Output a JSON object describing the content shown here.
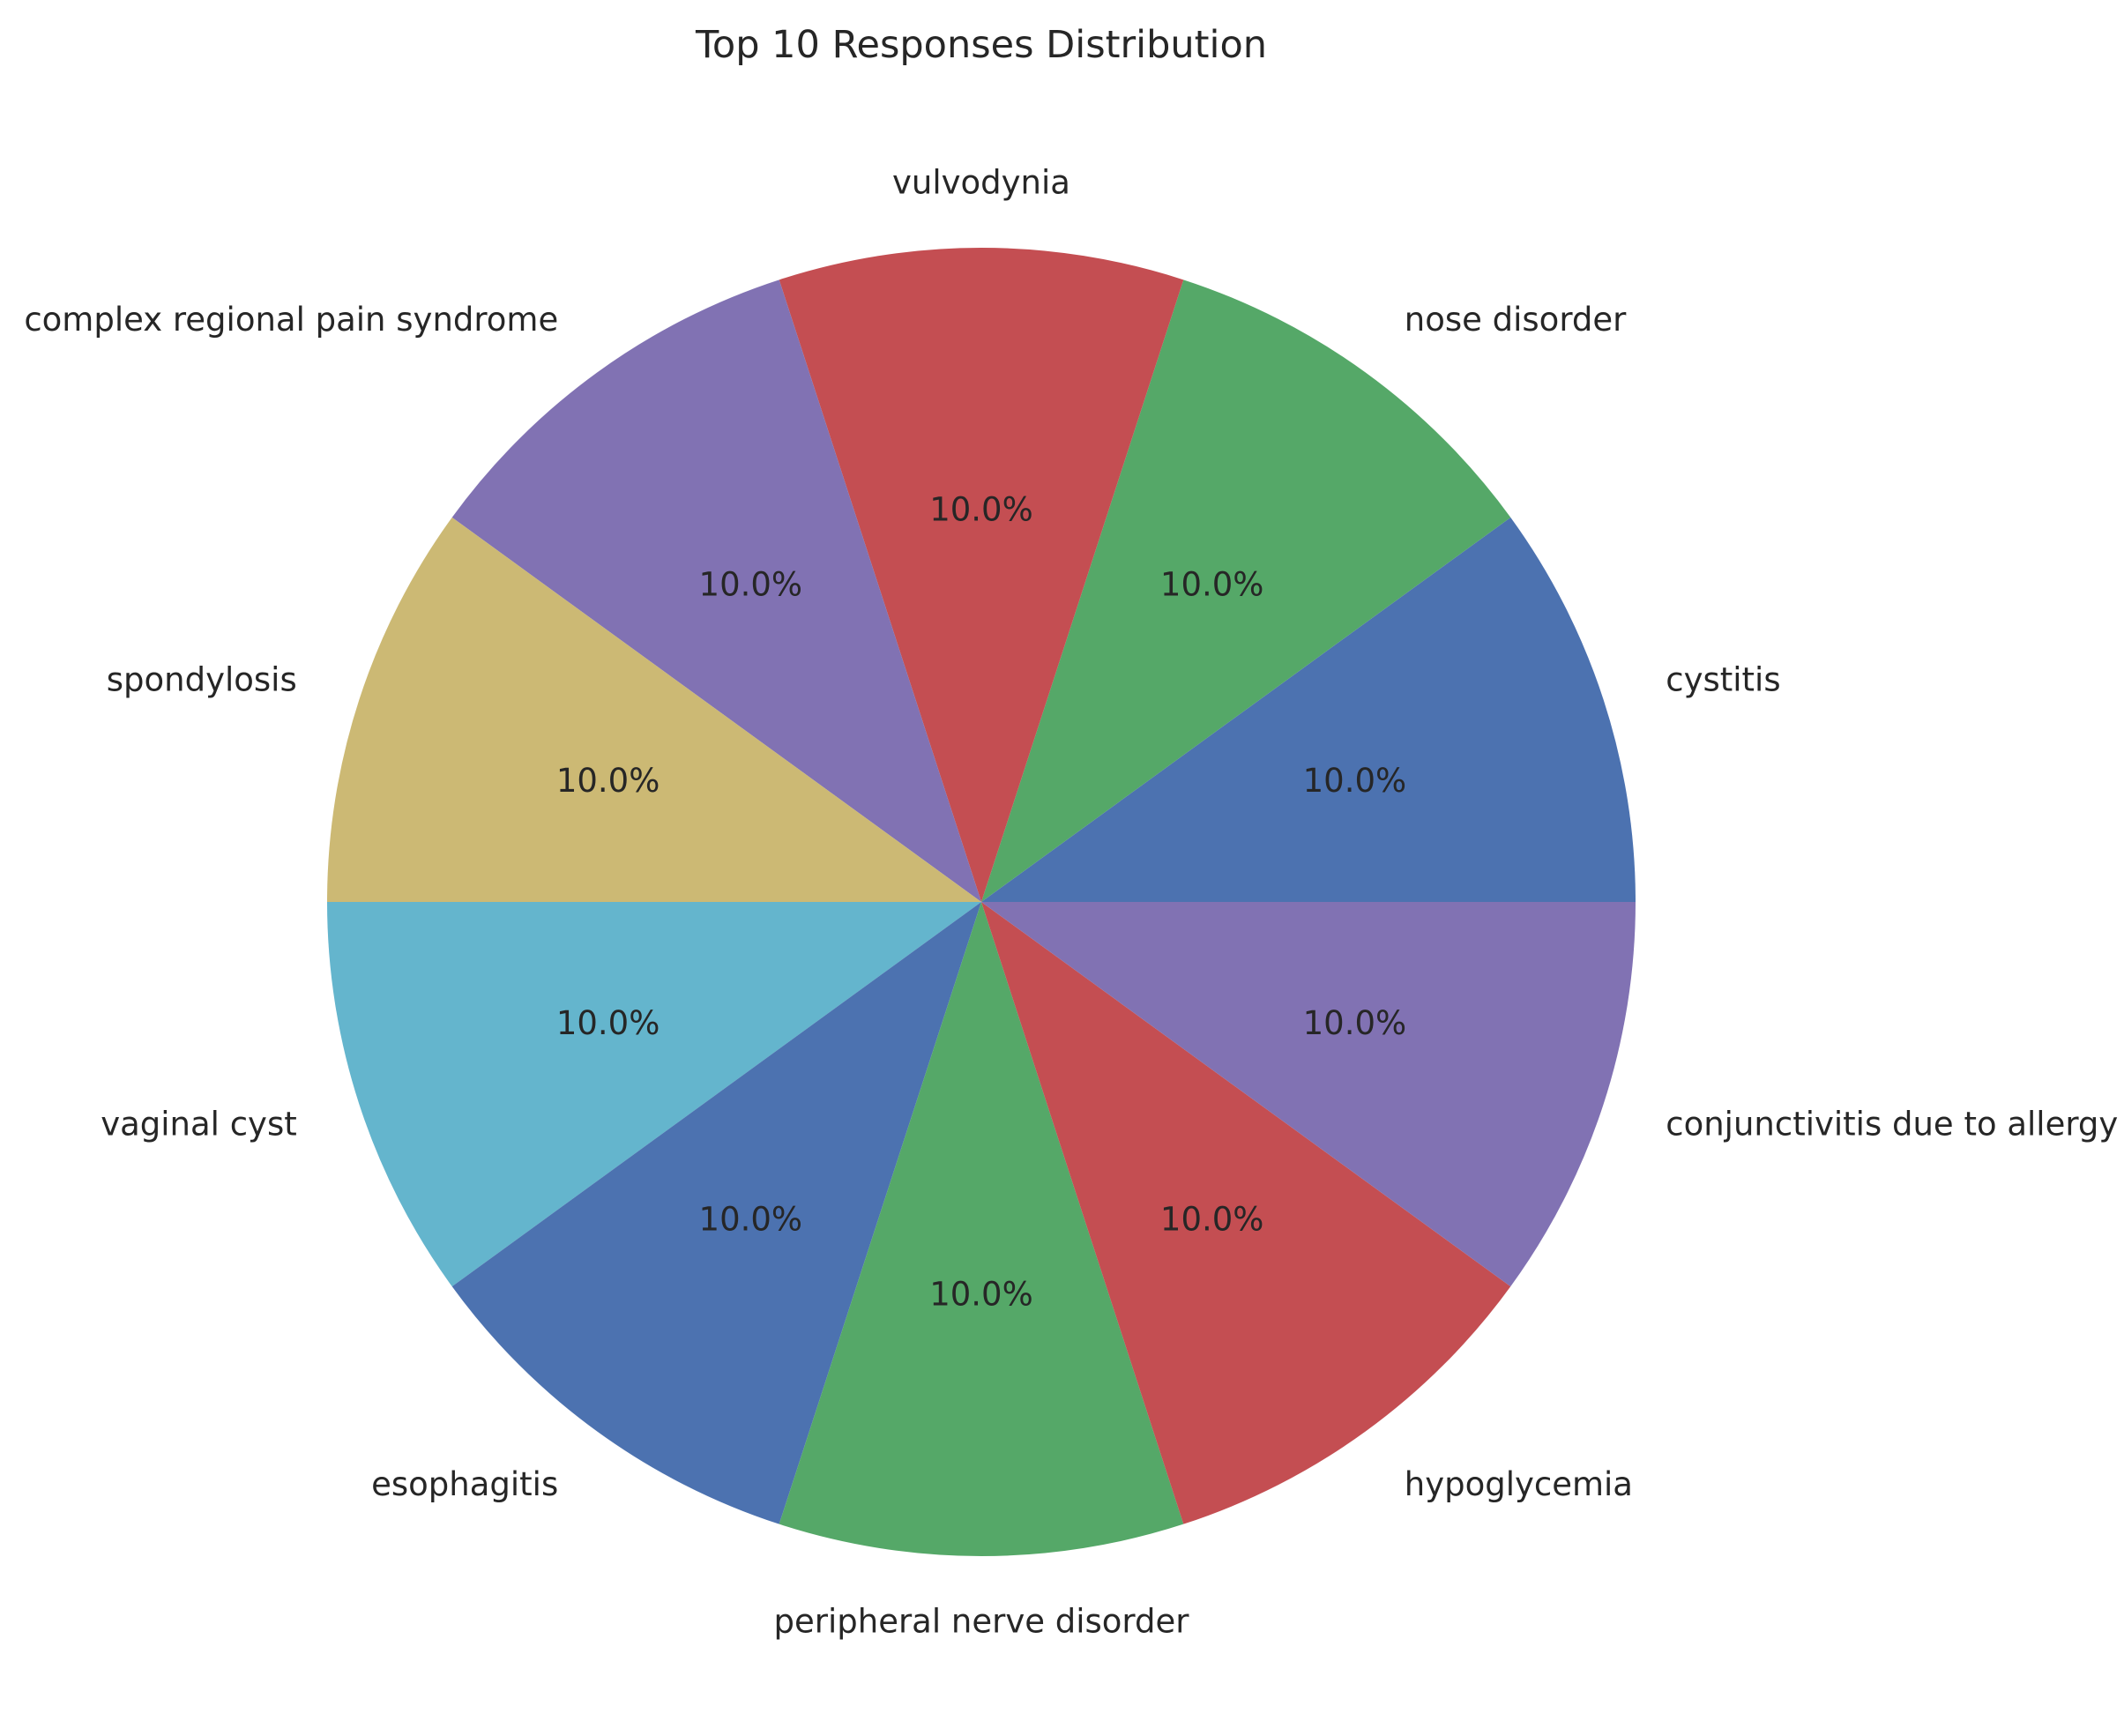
{
  "chart_data": {
    "type": "pie",
    "title": "Top 10 Responses Distribution",
    "start_angle_deg": 0,
    "direction": "counterclockwise",
    "slices": [
      {
        "label": "cystitis",
        "value": 10.0,
        "pct_label": "10.0%",
        "color": "#4c72b0"
      },
      {
        "label": "nose disorder",
        "value": 10.0,
        "pct_label": "10.0%",
        "color": "#55a868"
      },
      {
        "label": "vulvodynia",
        "value": 10.0,
        "pct_label": "10.0%",
        "color": "#c44e52"
      },
      {
        "label": "complex regional pain syndrome",
        "value": 10.0,
        "pct_label": "10.0%",
        "color": "#8172b3"
      },
      {
        "label": "spondylosis",
        "value": 10.0,
        "pct_label": "10.0%",
        "color": "#ccb974"
      },
      {
        "label": "vaginal cyst",
        "value": 10.0,
        "pct_label": "10.0%",
        "color": "#64b5cd"
      },
      {
        "label": "esophagitis",
        "value": 10.0,
        "pct_label": "10.0%",
        "color": "#4c72b0"
      },
      {
        "label": "peripheral nerve disorder",
        "value": 10.0,
        "pct_label": "10.0%",
        "color": "#55a868"
      },
      {
        "label": "hypoglycemia",
        "value": 10.0,
        "pct_label": "10.0%",
        "color": "#c44e52"
      },
      {
        "label": "conjunctivitis due to allergy",
        "value": 10.0,
        "pct_label": "10.0%",
        "color": "#8172b3"
      }
    ]
  }
}
